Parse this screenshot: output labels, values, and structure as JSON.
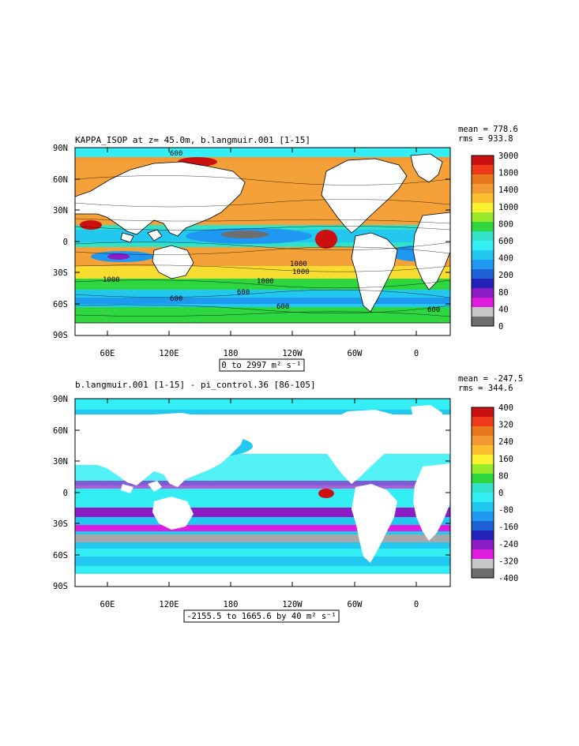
{
  "colors": {
    "land": "#ffffff",
    "frame": "#000000",
    "sea_ice_cyan": "#33f0f0",
    "warm_orange": "#f7a640",
    "red": "#d81e1e",
    "green": "#39d13d",
    "blue": "#1e8ff0",
    "purple": "#b21cc0",
    "grey": "#6e6e6e"
  },
  "panels": [
    {
      "title": "KAPPA_ISOP at z=  45.0m, b.langmuir.001 [1-15]",
      "stats": {
        "mean": "mean = 778.6",
        "rms": "rms = 933.8"
      },
      "range_label": "0 to 2997 m² s⁻¹",
      "y_ticks": [
        "90N",
        "60N",
        "30N",
        "0",
        "30S",
        "60S",
        "90S"
      ],
      "x_ticks": [
        "60E",
        "120E",
        "180",
        "120W",
        "60W",
        "0"
      ],
      "colorbar": {
        "labels": [
          "3000",
          "1800",
          "1400",
          "1000",
          "800",
          "600",
          "400",
          "200",
          "80",
          "40",
          "0"
        ],
        "colors": [
          "#cc1010",
          "#ee3a1a",
          "#e8781e",
          "#f49a34",
          "#fbbf30",
          "#f9f22e",
          "#99ea2a",
          "#2ed640",
          "#33e0c8",
          "#33eef4",
          "#22c8f0",
          "#1e98f0",
          "#1e62d8",
          "#2222b8",
          "#8e1cc6",
          "#e01ce0",
          "#c8c8c8",
          "#6e6e6e"
        ]
      },
      "contour_labels": [
        "600",
        "1000",
        "1000",
        "1000",
        "1000",
        "600",
        "600",
        "600",
        "600"
      ]
    },
    {
      "title": "b.langmuir.001 [1-15] - pi_control.36 [86-105]",
      "stats": {
        "mean": "mean = -247.5",
        "rms": "rms = 344.6"
      },
      "range_label": "-2155.5 to 1665.6 by 40 m² s⁻¹",
      "y_ticks": [
        "90N",
        "60N",
        "30N",
        "0",
        "30S",
        "60S",
        "90S"
      ],
      "x_ticks": [
        "60E",
        "120E",
        "180",
        "120W",
        "60W",
        "0"
      ],
      "colorbar": {
        "labels": [
          "400",
          "320",
          "240",
          "160",
          "80",
          "0",
          "-80",
          "-160",
          "-240",
          "-320",
          "-400"
        ],
        "colors": [
          "#cc1010",
          "#ee3a1a",
          "#e8781e",
          "#f49a34",
          "#fbbf30",
          "#f9f22e",
          "#99ea2a",
          "#2ed640",
          "#33e0c8",
          "#33eef4",
          "#22c8f0",
          "#1e98f0",
          "#1e62d8",
          "#2222b8",
          "#8e1cc6",
          "#e01ce0",
          "#c8c8c8",
          "#6e6e6e"
        ]
      }
    }
  ]
}
